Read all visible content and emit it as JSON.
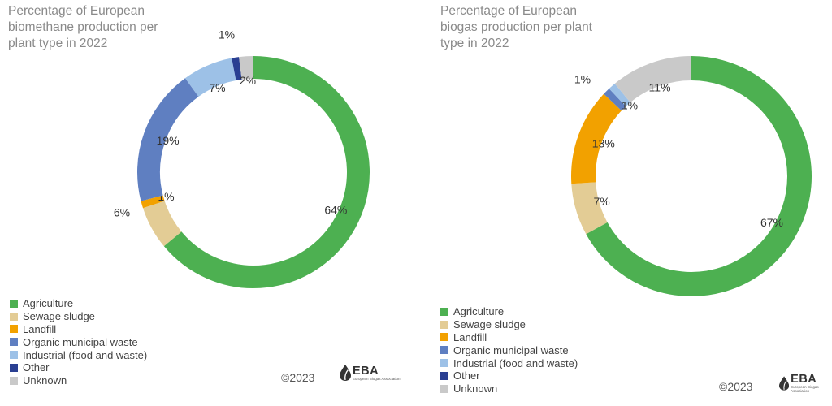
{
  "colors": {
    "Agriculture": "#4db051",
    "Sewage sludge": "#e3cc95",
    "Landfill": "#f2a100",
    "Organic municipal waste": "#5f7fc1",
    "Industrial (food and waste)": "#9dc1e7",
    "Other": "#2a3f92",
    "Unknown": "#c9c9c9"
  },
  "copyright": "©2023",
  "logo": {
    "name": "EBA",
    "subtitle": "European Biogas Association",
    "icon": "leaf-drop-icon"
  },
  "chart_data": [
    {
      "type": "pie",
      "subtype": "donut",
      "title": "Percentage of European biomethane production per plant type in 2022",
      "categories": [
        "Agriculture",
        "Sewage sludge",
        "Landfill",
        "Organic municipal waste",
        "Industrial (food and waste)",
        "Other",
        "Unknown"
      ],
      "values": [
        64,
        6,
        1,
        19,
        7,
        1,
        2
      ],
      "labels": [
        "64%",
        "6%",
        "1%",
        "19%",
        "7%",
        "1%",
        "2%"
      ],
      "legend_position": "bottom-left"
    },
    {
      "type": "pie",
      "subtype": "donut",
      "title": "Percentage of European biogas production per plant type in 2022",
      "categories": [
        "Agriculture",
        "Sewage sludge",
        "Landfill",
        "Organic municipal waste",
        "Industrial (food and waste)",
        "Other",
        "Unknown"
      ],
      "values": [
        67,
        7,
        13,
        1,
        1,
        0,
        11
      ],
      "labels": [
        "67%",
        "7%",
        "13%",
        "1%",
        "1%",
        "",
        "11%"
      ],
      "legend_position": "bottom-left"
    }
  ]
}
